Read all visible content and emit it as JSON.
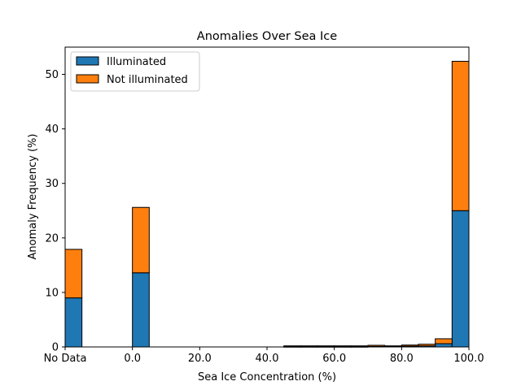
{
  "chart_data": {
    "type": "bar",
    "stacked": true,
    "title": "Anomalies Over Sea Ice",
    "xlabel": "Sea Ice Concentration (%)",
    "ylabel": "Anomaly Frequency (%)",
    "xlim": [
      -20,
      100
    ],
    "ylim": [
      0,
      55
    ],
    "bin_width": 5,
    "x_ticks": [
      {
        "value": -20,
        "label": "No Data"
      },
      {
        "value": 0,
        "label": "0.0"
      },
      {
        "value": 20,
        "label": "20.0"
      },
      {
        "value": 40,
        "label": "40.0"
      },
      {
        "value": 60,
        "label": "60.0"
      },
      {
        "value": 80,
        "label": "80.0"
      },
      {
        "value": 100,
        "label": "100.0"
      }
    ],
    "y_ticks": [
      0,
      10,
      20,
      30,
      40,
      50
    ],
    "legend_position": "top-left",
    "grid": false,
    "bin_starts": [
      -20,
      -15,
      -10,
      -5,
      0,
      5,
      10,
      15,
      20,
      25,
      30,
      35,
      40,
      45,
      50,
      55,
      60,
      65,
      70,
      75,
      80,
      85,
      90,
      95
    ],
    "series": [
      {
        "name": "Illuminated",
        "color": "#1f77b4",
        "values": [
          9.0,
          0,
          0,
          0,
          13.6,
          0,
          0,
          0,
          0,
          0,
          0,
          0,
          0,
          0.05,
          0.05,
          0.05,
          0.05,
          0.05,
          0.1,
          0.1,
          0.15,
          0.2,
          0.6,
          25.0
        ]
      },
      {
        "name": "Not illuminated",
        "color": "#ff7f0e",
        "values": [
          8.9,
          0,
          0,
          0,
          12.0,
          0,
          0,
          0,
          0,
          0,
          0,
          0,
          0,
          0.15,
          0.15,
          0.15,
          0.15,
          0.15,
          0.2,
          0.1,
          0.2,
          0.3,
          0.9,
          27.4
        ]
      }
    ]
  }
}
